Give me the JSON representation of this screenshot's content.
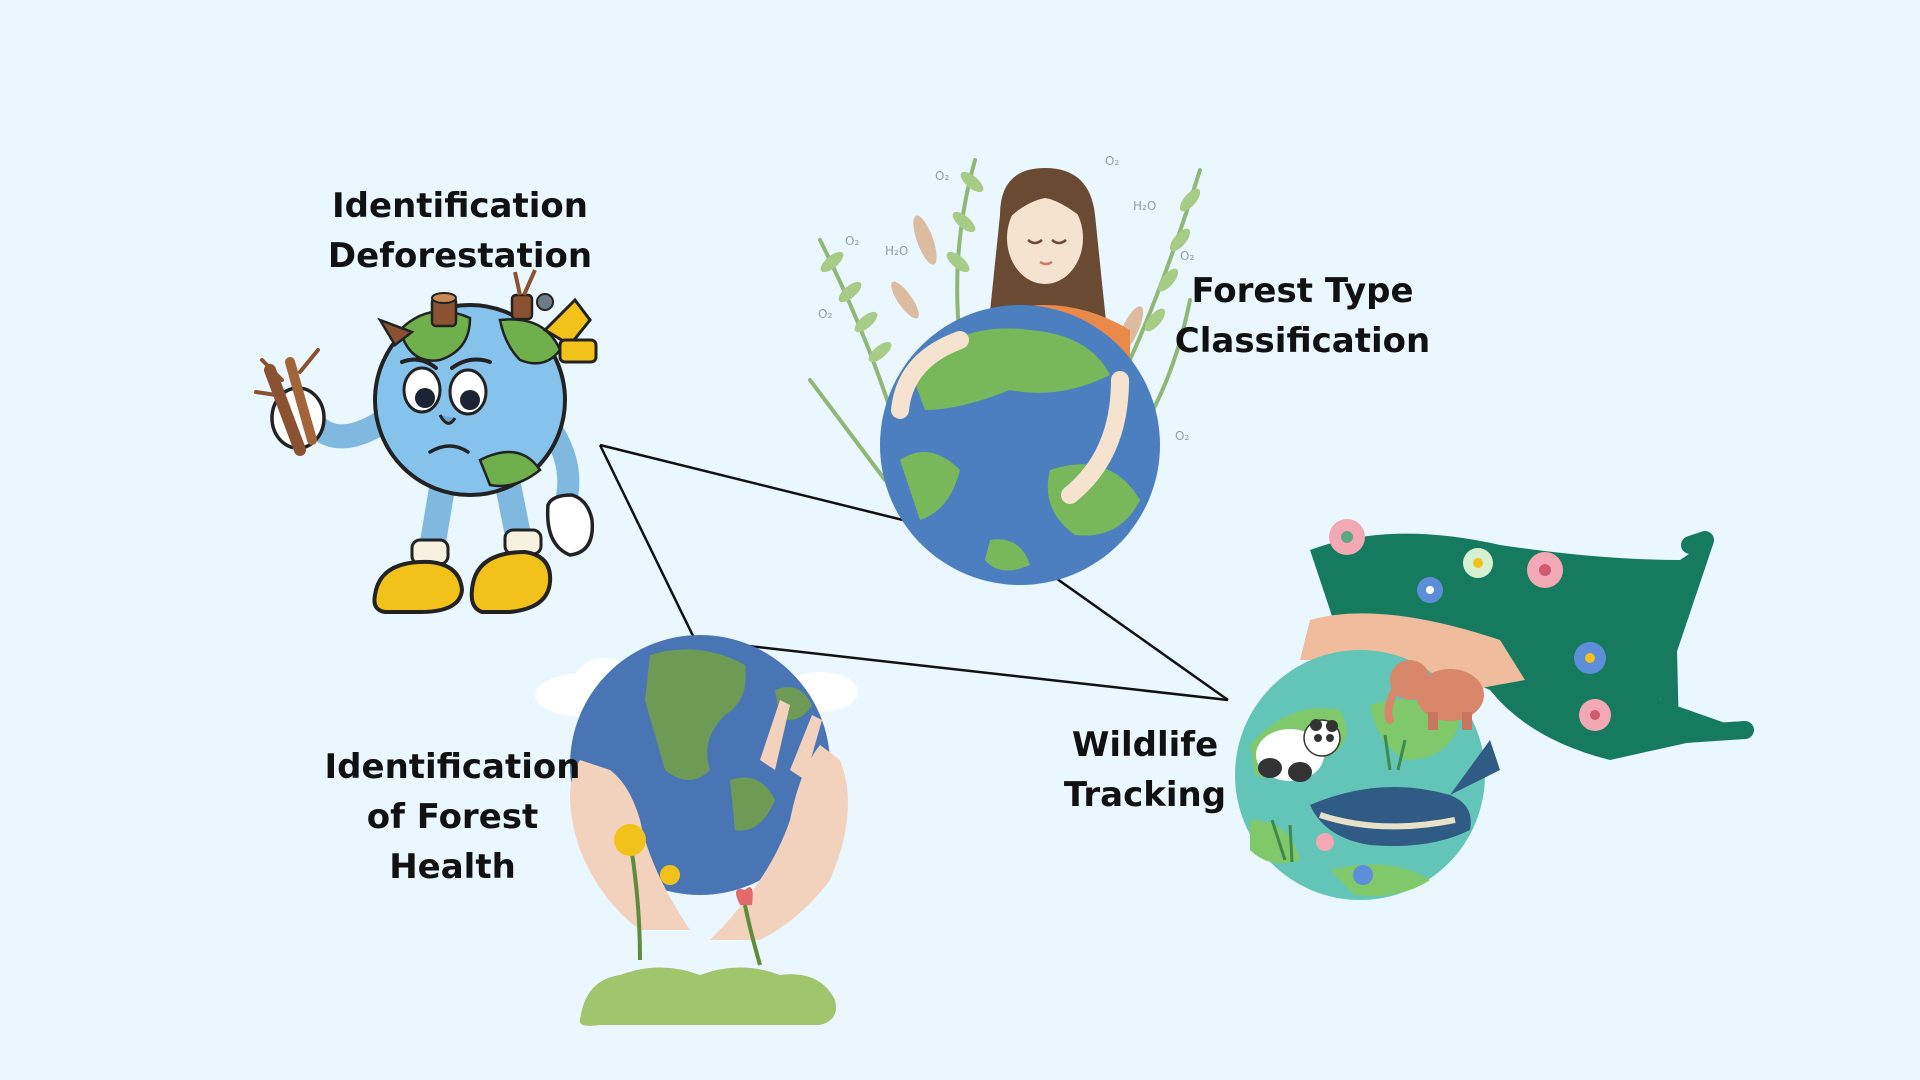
{
  "labels": {
    "deforestation": [
      "Identification",
      "Deforestation"
    ],
    "forest_type": [
      "Forest Type",
      "Classification"
    ],
    "wildlife": [
      "Wildlife",
      "Tracking"
    ],
    "health": [
      "Identification",
      "of Forest",
      "Health"
    ]
  },
  "colors": {
    "background": "#ebf7fe",
    "ocean": "#5aa3d6",
    "land": "#76b94c",
    "boot": "#f2c21a",
    "dress_green": "#167a5f",
    "hair": "#6b4a33",
    "shirt": "#e98a4a",
    "connector": "#111111"
  },
  "icons": {
    "deforestation": "sad-earth-cartoon-icon",
    "forest_type": "girl-hugging-earth-icon",
    "wildlife": "person-hugging-wildlife-globe-icon",
    "health": "hands-holding-earth-icon"
  }
}
